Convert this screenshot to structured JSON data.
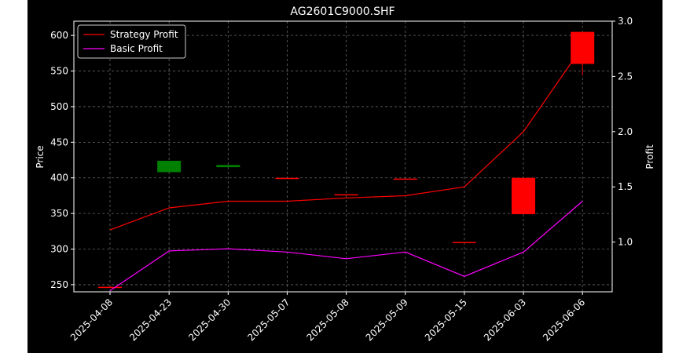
{
  "chart_data": {
    "type": "candlestick+line",
    "title": "AG2601C9000.SHF",
    "xlabel": "",
    "ylabel": "Price",
    "y2label": "Profit",
    "categories": [
      "2025-04-08",
      "2025-04-23",
      "2025-04-30",
      "2025-05-07",
      "2025-05-08",
      "2025-05-09",
      "2025-05-15",
      "2025-06-03",
      "2025-06-06"
    ],
    "ylim": [
      240,
      620
    ],
    "y2lim": [
      0.55,
      3.0
    ],
    "yticks": [
      250,
      300,
      350,
      400,
      450,
      500,
      550,
      600
    ],
    "y2ticks": [
      1.0,
      1.5,
      2.0,
      2.5,
      3.0
    ],
    "y2tick_labels": [
      "1.0",
      "1.5",
      "2.0",
      "2.5",
      "3.0"
    ],
    "grid": true,
    "legend_position": "top-left",
    "candles": [
      {
        "date": "2025-04-08",
        "open": 247,
        "close": 247,
        "high": 248,
        "low": 246,
        "color": "#ff0000"
      },
      {
        "date": "2025-04-23",
        "open": 408,
        "close": 424,
        "high": 424,
        "low": 408,
        "color": "#008000"
      },
      {
        "date": "2025-04-30",
        "open": 415,
        "close": 418,
        "high": 418,
        "low": 415,
        "color": "#008000"
      },
      {
        "date": "2025-05-07",
        "open": 400,
        "close": 400,
        "high": 400,
        "low": 400,
        "color": "#ff0000"
      },
      {
        "date": "2025-05-08",
        "open": 377,
        "close": 377,
        "high": 377,
        "low": 377,
        "color": "#ff0000"
      },
      {
        "date": "2025-05-09",
        "open": 399,
        "close": 399,
        "high": 399,
        "low": 399,
        "color": "#ff0000"
      },
      {
        "date": "2025-05-15",
        "open": 310,
        "close": 310,
        "high": 310,
        "low": 310,
        "color": "#ff0000"
      },
      {
        "date": "2025-06-03",
        "open": 400,
        "close": 349,
        "high": 400,
        "low": 349,
        "color": "#ff0000"
      },
      {
        "date": "2025-06-06",
        "open": 605,
        "close": 560,
        "high": 605,
        "low": 544,
        "color": "#ff0000"
      }
    ],
    "series": [
      {
        "name": "Strategy Profit",
        "color": "#ff0000",
        "axis": "right",
        "values": [
          1.11,
          1.31,
          1.37,
          1.37,
          1.4,
          1.42,
          1.5,
          2.0,
          2.77
        ]
      },
      {
        "name": "Basic Profit",
        "color": "#ff00ff",
        "axis": "right",
        "values": [
          0.56,
          0.92,
          0.94,
          0.91,
          0.85,
          0.91,
          0.69,
          0.91,
          1.37
        ]
      }
    ],
    "colors": {
      "background": "#000000",
      "page": "#ffffff",
      "grid": "#666666",
      "frame": "#ffffff"
    }
  }
}
